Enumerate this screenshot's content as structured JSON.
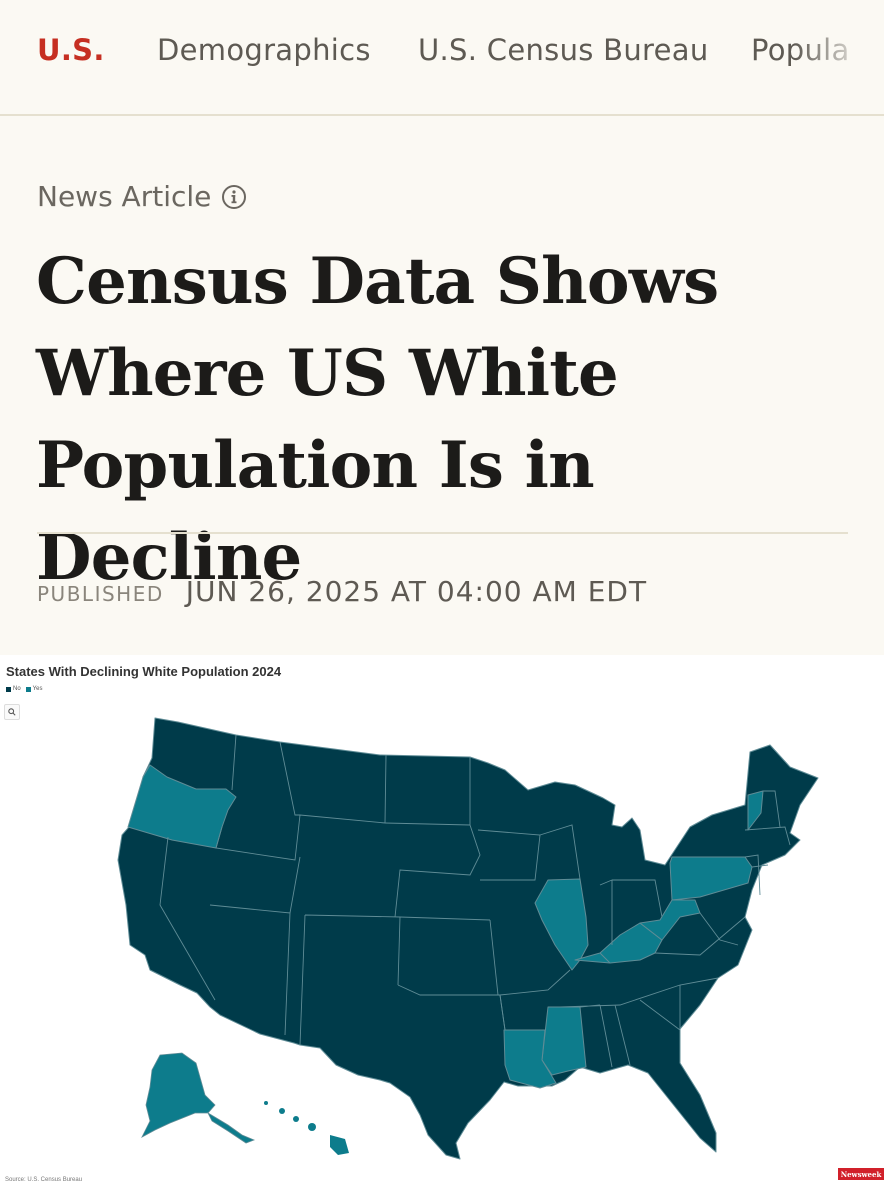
{
  "nav": {
    "items": [
      {
        "label": "U.S.",
        "active": true
      },
      {
        "label": "Demographics",
        "active": false
      },
      {
        "label": "U.S. Census Bureau",
        "active": false
      },
      {
        "label": "Popula",
        "active": false
      }
    ]
  },
  "article": {
    "type_label": "News Article",
    "headline": "Census Data Shows Where US White Population Is in Decline",
    "published_label": "PUBLISHED",
    "published_date": "JUN 26, 2025 AT 04:00 AM EDT"
  },
  "map": {
    "title": "States With Declining White Population 2024",
    "legend": [
      {
        "label": "No",
        "color": "#003b4a"
      },
      {
        "label": "Yes",
        "color": "#0d7c8c"
      }
    ],
    "states_yes": [
      "Oregon",
      "Illinois",
      "Kentucky",
      "West Virginia",
      "Pennsylvania",
      "Vermont",
      "Mississippi",
      "Louisiana",
      "Alaska",
      "Hawaii"
    ],
    "source": "Source: U.S. Census Bureau",
    "logo_text": "Newsweek"
  },
  "colors": {
    "accent": "#c62f22",
    "map_no": "#003b4a",
    "map_yes": "#0d7c8c"
  }
}
